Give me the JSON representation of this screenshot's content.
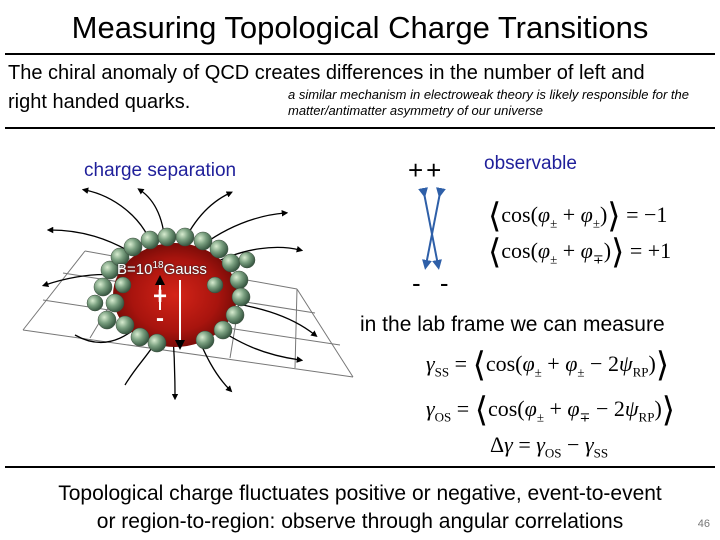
{
  "title": "Measuring Topological Charge Transitions",
  "intro": {
    "line1": "The chiral anomaly of QCD creates differences in the number of left and",
    "line2": "right handed quarks.",
    "note": "a similar mechanism in electroweak theory is likely responsible for the matter/antimatter asymmetry of our universe"
  },
  "diagram": {
    "charge_separation": "charge separation",
    "b_field_base": "B=10",
    "b_field_exp": "18",
    "b_field_unit": "Gauss",
    "plus": "+",
    "minus": "-"
  },
  "observables": {
    "plusplus": "++",
    "minusminus": "- -",
    "label": "observable",
    "lab_frame": "in the lab frame we can measure"
  },
  "footer": {
    "line1": "Topological charge fluctuates positive or negative, event-to-event",
    "line2": "or region-to-region: observe through angular correlations"
  },
  "page_number": "46",
  "colors": {
    "accent_blue": "#1f1f9a",
    "fireball_red": "#b81a12"
  }
}
